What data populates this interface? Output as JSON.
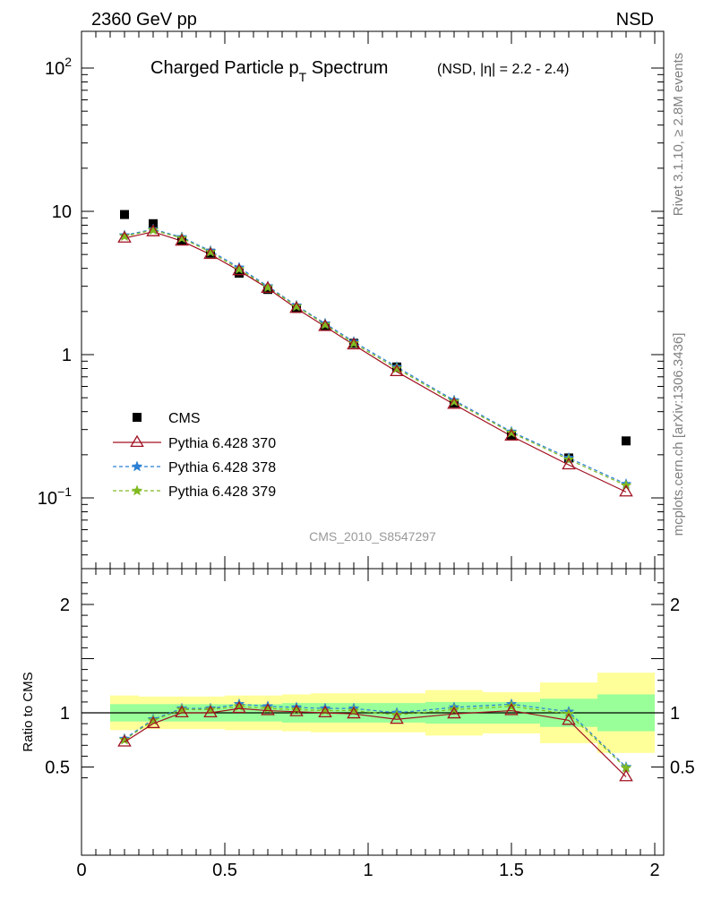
{
  "header": {
    "left": "2360 GeV pp",
    "right": "NSD"
  },
  "side_labels": {
    "rivet": "Rivet 3.1.10, ≥ 2.8M events",
    "mcplots": "mcplots.cern.ch [arXiv:1306.3436]"
  },
  "chart_data": {
    "type": "scatter",
    "title_main": "Charged Particle p",
    "title_sub": "T",
    "title_rest": " Spectrum",
    "title_small": "(NSD, |η| = 2.2 - 2.4)",
    "watermark": "CMS_2010_S8547297",
    "ratio_ylabel": "Ratio to CMS",
    "xlim": [
      0,
      2.0
    ],
    "xticks": [
      "0",
      "0.5",
      "1",
      "1.5",
      "2"
    ],
    "ylim_main": [
      0.03,
      180
    ],
    "ylog": true,
    "yticks_main": [
      {
        "v": 0.1,
        "base": "10",
        "exp": "−1"
      },
      {
        "v": 1,
        "base": "1",
        "exp": ""
      },
      {
        "v": 10,
        "base": "10",
        "exp": ""
      },
      {
        "v": 100,
        "base": "10",
        "exp": "2"
      }
    ],
    "ylim_ratio": [
      0.38,
      2.25
    ],
    "yticks_ratio": [
      {
        "v": 0.5,
        "label": "0.5"
      },
      {
        "v": 1,
        "label": "1"
      },
      {
        "v": 2,
        "label": "2"
      }
    ],
    "x_bins": [
      [
        0.1,
        0.2
      ],
      [
        0.2,
        0.3
      ],
      [
        0.3,
        0.4
      ],
      [
        0.4,
        0.5
      ],
      [
        0.5,
        0.6
      ],
      [
        0.6,
        0.7
      ],
      [
        0.7,
        0.8
      ],
      [
        0.8,
        0.9
      ],
      [
        0.9,
        1.0
      ],
      [
        1.0,
        1.2
      ],
      [
        1.2,
        1.4
      ],
      [
        1.4,
        1.6
      ],
      [
        1.6,
        1.8
      ],
      [
        1.8,
        2.0
      ]
    ],
    "x": [
      0.15,
      0.25,
      0.35,
      0.45,
      0.55,
      0.65,
      0.75,
      0.85,
      0.95,
      1.1,
      1.3,
      1.5,
      1.7,
      1.9
    ],
    "data": {
      "name": "CMS",
      "values": [
        9.5,
        8.2,
        6.3,
        5.1,
        3.7,
        2.85,
        2.1,
        1.58,
        1.2,
        0.82,
        0.46,
        0.27,
        0.19,
        0.25
      ],
      "band_green": [
        0.08,
        0.08,
        0.08,
        0.08,
        0.08,
        0.08,
        0.09,
        0.09,
        0.09,
        0.09,
        0.1,
        0.1,
        0.13,
        0.17
      ],
      "band_yellow": [
        0.16,
        0.15,
        0.15,
        0.15,
        0.16,
        0.16,
        0.17,
        0.18,
        0.18,
        0.18,
        0.21,
        0.19,
        0.28,
        0.37
      ]
    },
    "series": [
      {
        "name": "Pythia 6.428 370",
        "color": "#a01020",
        "dash": "none",
        "marker": "triangle",
        "values": [
          6.5,
          7.2,
          6.2,
          5.0,
          3.85,
          2.9,
          2.1,
          1.57,
          1.17,
          0.76,
          0.45,
          0.27,
          0.17,
          0.11
        ]
      },
      {
        "name": "Pythia 6.428 378",
        "color": "#2a7fd4",
        "dash": "4,3",
        "marker": "star",
        "values": [
          6.8,
          7.5,
          6.6,
          5.3,
          4.05,
          3.0,
          2.2,
          1.65,
          1.23,
          0.82,
          0.48,
          0.29,
          0.19,
          0.125
        ]
      },
      {
        "name": "Pythia 6.428 379",
        "color": "#7fba20",
        "dash": "4,3",
        "marker": "star",
        "values": [
          6.7,
          7.4,
          6.5,
          5.2,
          3.95,
          2.95,
          2.17,
          1.62,
          1.2,
          0.8,
          0.47,
          0.285,
          0.185,
          0.122
        ]
      }
    ],
    "ratios": [
      [
        0.73,
        0.9,
        1.0,
        1.0,
        1.04,
        1.02,
        1.01,
        1.0,
        0.99,
        0.94,
        0.99,
        1.02,
        0.93,
        0.41
      ],
      [
        0.76,
        0.94,
        1.04,
        1.04,
        1.08,
        1.06,
        1.05,
        1.04,
        1.04,
        1.0,
        1.05,
        1.08,
        1.01,
        0.5
      ],
      [
        0.75,
        0.93,
        1.03,
        1.03,
        1.06,
        1.04,
        1.03,
        1.02,
        1.02,
        0.98,
        1.03,
        1.06,
        0.99,
        0.49
      ]
    ]
  }
}
